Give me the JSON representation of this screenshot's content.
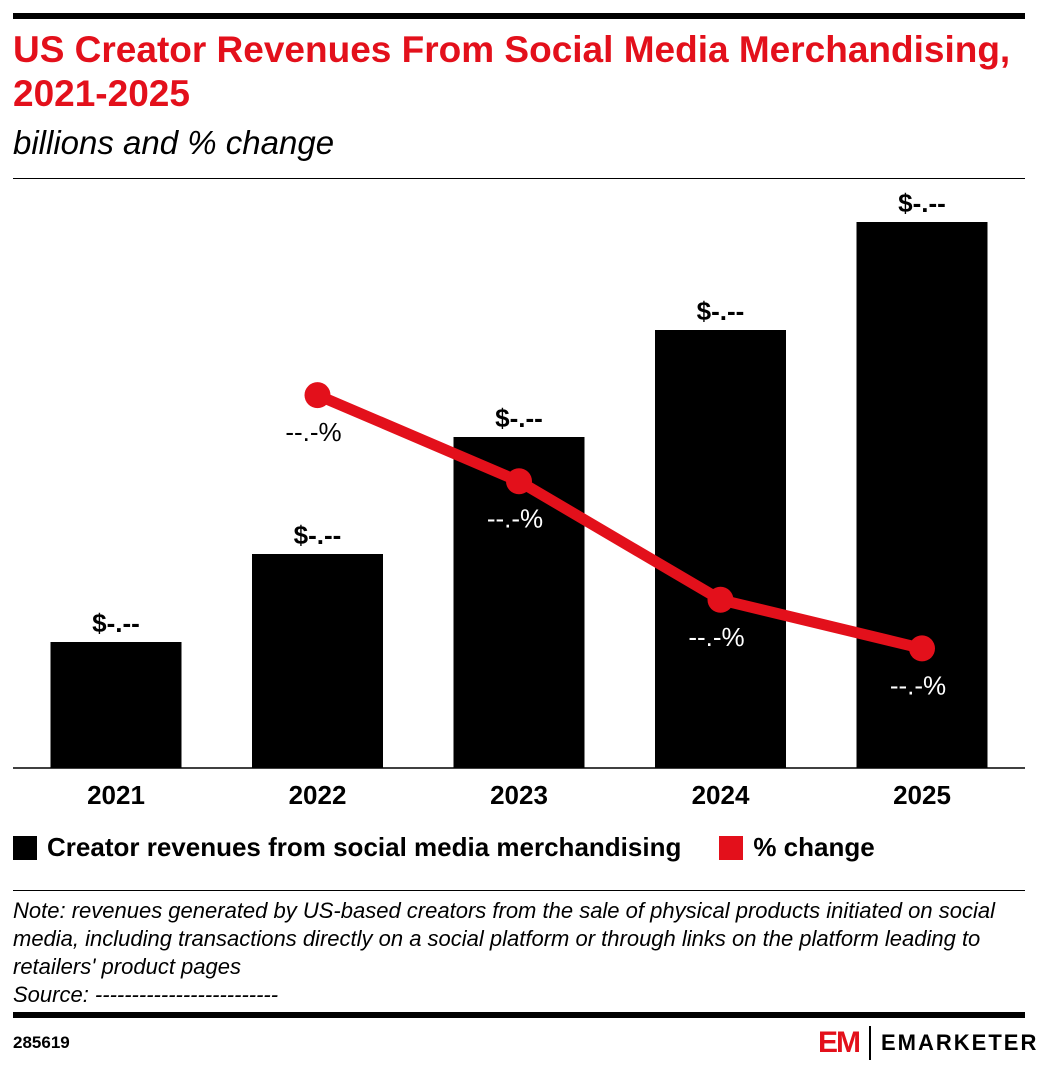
{
  "header": {
    "title": "US Creator Revenues From Social Media Merchandising, 2021-2025",
    "subtitle": "billions and % change"
  },
  "chart_data": {
    "type": "bar+line",
    "categories": [
      "2021",
      "2022",
      "2023",
      "2024",
      "2025"
    ],
    "series": [
      {
        "name": "Creator revenues from social media merchandising",
        "kind": "bar",
        "color": "#000000",
        "values_estimated_relative": [
          1.26,
          2.14,
          3.31,
          4.38,
          5.46
        ],
        "data_labels": [
          "$-.--",
          "$-.--",
          "$-.--",
          "$-.--",
          "$-.--"
        ]
      },
      {
        "name": "% change",
        "kind": "line",
        "color": "#e3101b",
        "values_estimated_relative": [
          null,
          74,
          57,
          33.6,
          24
        ],
        "data_labels": [
          null,
          "--.-%",
          "--.-%",
          "--.-%",
          "--.-%"
        ]
      }
    ],
    "ylim_bar": [
      0,
      5.46
    ],
    "ylim_line": [
      0,
      76
    ],
    "grid": false,
    "legend": "bottom-left"
  },
  "legend": {
    "items": [
      {
        "label": "Creator revenues from social media merchandising",
        "color": "#000000"
      },
      {
        "label": "% change",
        "color": "#e3101b"
      }
    ]
  },
  "footer": {
    "note": "Note: revenues generated by US-based creators from the sale of physical products initiated on social media, including transactions directly on a social platform or through links on the platform leading to retailers' product pages",
    "source": "Source: -------------------------",
    "chart_id": "285619",
    "brand": "EMARKETER",
    "logo_mark": "EM"
  }
}
